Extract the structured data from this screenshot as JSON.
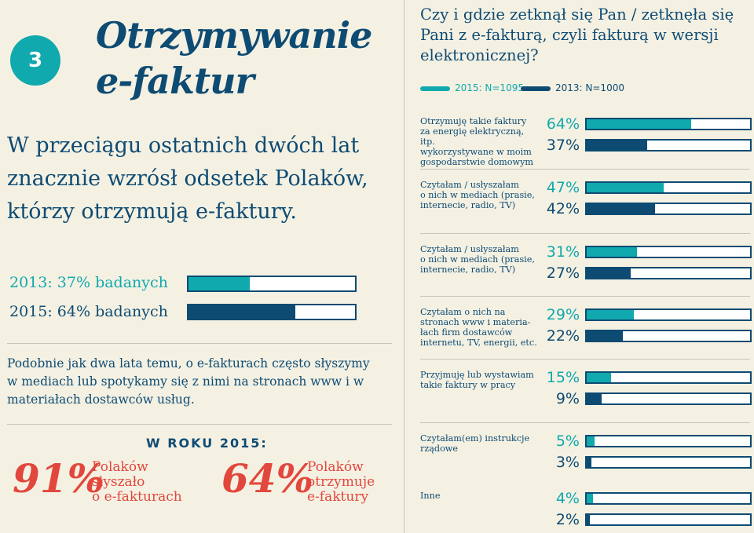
{
  "badge": "3",
  "title": {
    "line1": "Otrzymywanie",
    "line2": "e-faktur"
  },
  "lead": "W przeciągu ostatnich dwóch lat znacznie wzrósł odsetek Polaków, którzy otrzymują e-faktury.",
  "summary": [
    {
      "label": "2013: 37% badanych",
      "value": 37,
      "color": "#10a9ad"
    },
    {
      "label": "2015: 64% badanych",
      "value": 64,
      "color": "#0e4b73"
    }
  ],
  "paragraph": "Podobnie jak dwa lata temu, o e-fakturach często słyszymy w mediach lub spotykamy się z nimi na stronach www i w materiałach dostawców usług.",
  "year_heading": "W ROKU 2015:",
  "stat1": {
    "value": "91%",
    "desc1": "Polaków",
    "desc2": "słyszało",
    "desc3": "o e-fakturach"
  },
  "stat2": {
    "value": "64%",
    "desc1": "Polaków",
    "desc2": "otrzymuje",
    "desc3": "e-faktury"
  },
  "question": "Czy i gdzie zetknął się Pan / zetknęła się Pani z e-fakturą, czyli fakturą w wersji elektronicznej?",
  "legend": {
    "s2015": "2015: N=1095",
    "s2013": "2013: N=1000"
  },
  "colors": {
    "teal": "#10a9ad",
    "navy": "#0e4b73",
    "red": "#e2473d",
    "bg": "#f4f1e3"
  },
  "chart_data": {
    "type": "bar",
    "categories": [
      "Otrzymuję takie faktury za energię elektryczną, itp. wykorzystywane w moim gospodarstwie domowym",
      "Czytałam / usłyszałam o nich w mediach (prasie, internecie, radio, TV)",
      "Czytałam / usłyszałam o nich w mediach (prasie, internecie, radio, TV)",
      "Czytałam o nich na stronach www i materiałach firm dostawców internetu, TV, energii, etc.",
      "Przyjmuję lub wystawiam takie faktury w pracy",
      "Czytałam(em) instrukcje rządowe",
      "Inne"
    ],
    "label_lines": [
      [
        "Otrzymuję takie faktury",
        "za energię elektryczną, itp.",
        "wykorzystywane w moim",
        "gospodarstwie domowym"
      ],
      [
        "Czytałam / usłyszałam",
        "o nich w mediach (prasie,",
        "internecie, radio, TV)"
      ],
      [
        "Czytałam / usłyszałam",
        "o nich w mediach (prasie,",
        "internecie, radio, TV)"
      ],
      [
        "Czytałam o nich na",
        "stronach www i materia-",
        "łach firm dostawców",
        "internetu, TV, energii, etc."
      ],
      [
        "Przyjmuję lub wystawiam",
        "takie faktury w pracy"
      ],
      [
        "Czytałam(em) instrukcje",
        "rządowe"
      ],
      [
        "Inne"
      ]
    ],
    "series": [
      {
        "name": "2015: N=1095",
        "values": [
          64,
          47,
          31,
          29,
          15,
          5,
          4
        ],
        "color": "#10a9ad"
      },
      {
        "name": "2013: N=1000",
        "values": [
          37,
          42,
          27,
          22,
          9,
          3,
          2
        ],
        "color": "#0e4b73"
      }
    ],
    "ylim": [
      0,
      100
    ],
    "unit": "%"
  }
}
